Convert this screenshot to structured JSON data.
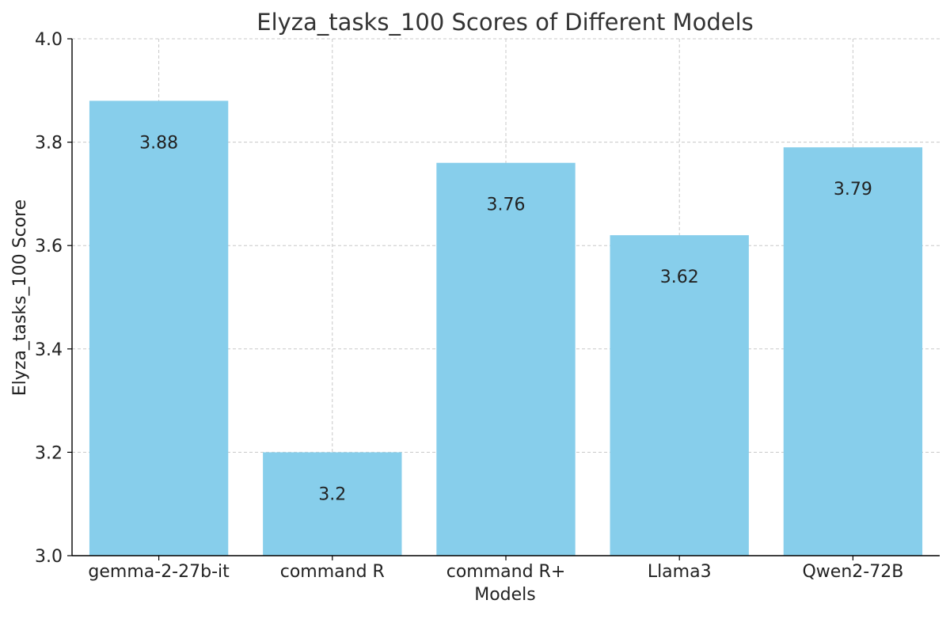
{
  "chart_data": {
    "type": "bar",
    "title": "Elyza_tasks_100 Scores of Different Models",
    "xlabel": "Models",
    "ylabel": "Elyza_tasks_100 Score",
    "categories": [
      "gemma-2-27b-it",
      "command R",
      "command R+",
      "Llama3",
      "Qwen2-72B"
    ],
    "values": [
      3.88,
      3.2,
      3.76,
      3.62,
      3.79
    ],
    "data_labels": [
      "3.88",
      "3.2",
      "3.76",
      "3.62",
      "3.79"
    ],
    "ylim": [
      3.0,
      4.0
    ],
    "yticks": [
      "3.0",
      "3.2",
      "3.4",
      "3.6",
      "3.8",
      "4.0"
    ],
    "grid": true,
    "colors": {
      "bar": "#87CEEB",
      "grid": "#c8c8c8",
      "axis": "#000000",
      "text": "#222222",
      "title": "#333333"
    }
  }
}
